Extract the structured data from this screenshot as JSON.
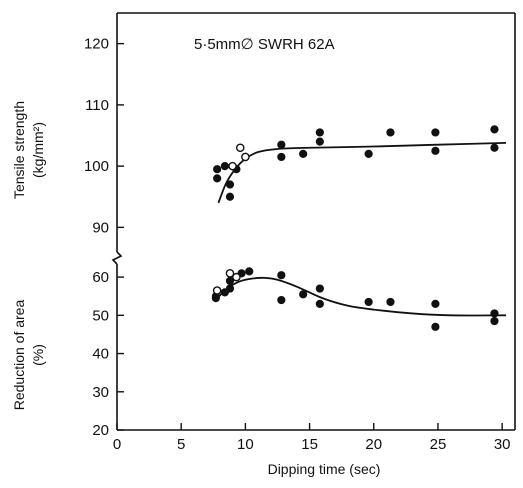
{
  "chart_data": {
    "type": "scatter",
    "annotation": "5·5mm∅ SWRH 62A",
    "xlabel": "Dipping time (sec)",
    "xlim": [
      0,
      31
    ],
    "x_ticks": [
      0,
      5,
      10,
      15,
      20,
      25,
      30
    ],
    "panels": [
      {
        "ylabel_lines": [
          "Tensile strength",
          "(kg/mm²)"
        ],
        "ylim": [
          85,
          125
        ],
        "y_ticks": [
          90,
          100,
          110,
          120
        ],
        "series": [
          {
            "marker": "filled",
            "points": [
              [
                7.8,
                99.5
              ],
              [
                7.8,
                98.0
              ],
              [
                8.4,
                100.0
              ],
              [
                8.8,
                97.0
              ],
              [
                8.8,
                95.0
              ],
              [
                9.3,
                99.5
              ],
              [
                12.8,
                103.5
              ],
              [
                12.8,
                101.5
              ],
              [
                14.5,
                102.0
              ],
              [
                15.8,
                105.5
              ],
              [
                15.8,
                104.0
              ],
              [
                19.6,
                102.0
              ],
              [
                21.3,
                105.5
              ],
              [
                24.8,
                105.5
              ],
              [
                24.8,
                102.5
              ],
              [
                29.4,
                106.0
              ],
              [
                29.4,
                103.0
              ]
            ]
          },
          {
            "marker": "open",
            "points": [
              [
                9.0,
                100.0
              ],
              [
                9.6,
                103.0
              ],
              [
                10.0,
                101.5
              ]
            ]
          }
        ],
        "fit_curve": [
          [
            7.9,
            94.0
          ],
          [
            8.5,
            97.2
          ],
          [
            9.2,
            99.5
          ],
          [
            10.0,
            101.2
          ],
          [
            11.0,
            102.3
          ],
          [
            12.5,
            102.8
          ],
          [
            15.0,
            103.0
          ],
          [
            20.0,
            103.2
          ],
          [
            25.0,
            103.5
          ],
          [
            30.3,
            103.8
          ]
        ]
      },
      {
        "ylabel_lines": [
          "Reduction of area",
          "(%)"
        ],
        "ylim": [
          20,
          65
        ],
        "y_ticks": [
          20,
          30,
          40,
          50,
          60
        ],
        "series": [
          {
            "marker": "filled",
            "points": [
              [
                7.7,
                54.5
              ],
              [
                7.7,
                55.0
              ],
              [
                8.4,
                56.0
              ],
              [
                8.8,
                59.0
              ],
              [
                8.8,
                57.0
              ],
              [
                9.7,
                61.0
              ],
              [
                10.3,
                61.5
              ],
              [
                12.8,
                60.5
              ],
              [
                12.8,
                54.0
              ],
              [
                14.5,
                55.5
              ],
              [
                15.8,
                57.0
              ],
              [
                15.8,
                53.0
              ],
              [
                19.6,
                53.5
              ],
              [
                21.3,
                53.5
              ],
              [
                24.8,
                53.0
              ],
              [
                24.8,
                47.0
              ],
              [
                29.4,
                50.5
              ],
              [
                29.4,
                48.5
              ]
            ]
          },
          {
            "marker": "open",
            "points": [
              [
                7.8,
                56.5
              ],
              [
                8.8,
                61.0
              ],
              [
                9.3,
                60.0
              ]
            ]
          }
        ],
        "fit_curve": [
          [
            7.7,
            54.0
          ],
          [
            8.5,
            56.8
          ],
          [
            9.5,
            58.8
          ],
          [
            10.5,
            59.6
          ],
          [
            11.5,
            59.8
          ],
          [
            12.5,
            59.3
          ],
          [
            14.0,
            57.5
          ],
          [
            16.0,
            54.5
          ],
          [
            18.0,
            52.5
          ],
          [
            20.0,
            51.5
          ],
          [
            23.0,
            50.5
          ],
          [
            26.0,
            50.0
          ],
          [
            30.3,
            50.0
          ]
        ]
      }
    ]
  }
}
